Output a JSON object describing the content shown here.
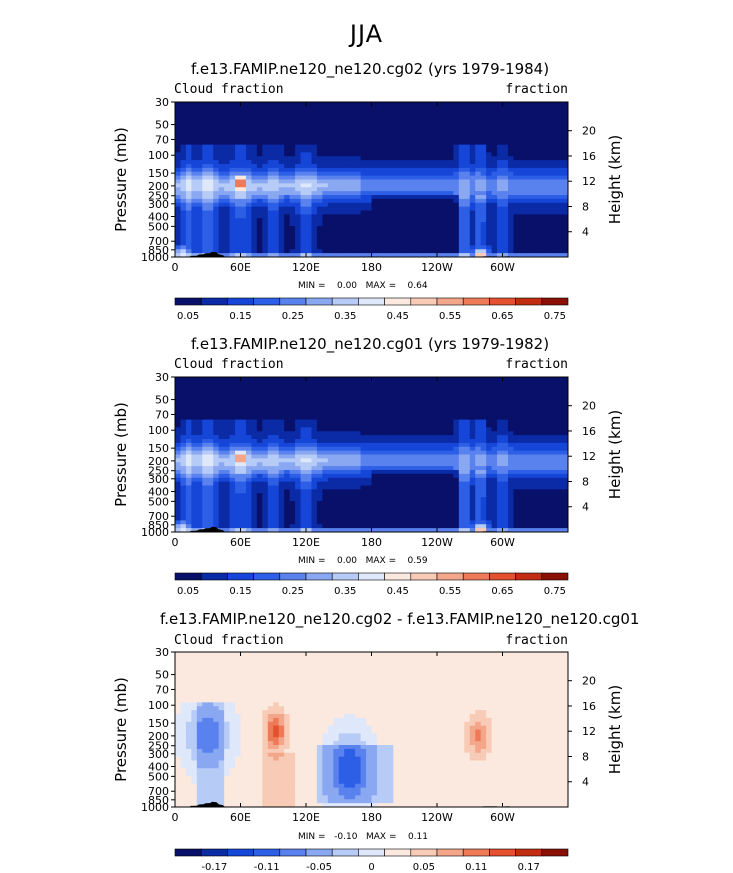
{
  "figure": {
    "title": "JJA"
  },
  "colors": {
    "abs_scale": [
      "#08106a",
      "#0a2aa6",
      "#1646d8",
      "#2c5ee6",
      "#5a82ee",
      "#8aa8f2",
      "#b6cbf6",
      "#dfe8fb",
      "#fbe8de",
      "#f8cbb6",
      "#f3a68a",
      "#ee7a58",
      "#e4512e",
      "#c22d12",
      "#8a1006"
    ],
    "diff_scale": [
      "#08106a",
      "#0a2aa6",
      "#1646d8",
      "#2c5ee6",
      "#5a82ee",
      "#8aa8f2",
      "#b6cbf6",
      "#dfe8fb",
      "#fbe8de",
      "#f8cbb6",
      "#f3a68a",
      "#ee7a58",
      "#e4512e",
      "#c22d12",
      "#8a1006"
    ],
    "topography": "#000000"
  },
  "chart_data": [
    {
      "type": "heatmap",
      "title": "f.e13.FAMIP.ne120_ne120.cg02 (yrs 1979-1984)",
      "left_label": "Cloud fraction",
      "right_label": "fraction",
      "ylabel": "Pressure (mb)",
      "ylabel_right": "Height (km)",
      "x_ticks": [
        "0",
        "60E",
        "120E",
        "180",
        "120W",
        "60W"
      ],
      "x_tick_values": [
        0,
        60,
        120,
        180,
        240,
        300
      ],
      "xlim": [
        0,
        360
      ],
      "y_ticks": [
        "30",
        "50",
        "70",
        "100",
        "150",
        "200",
        "250",
        "300",
        "400",
        "500",
        "700",
        "850",
        "1000"
      ],
      "y_tick_values": [
        30,
        50,
        70,
        100,
        150,
        200,
        250,
        300,
        400,
        500,
        700,
        850,
        1000
      ],
      "ylim": [
        30,
        1000
      ],
      "y_scale": "log",
      "right_ticks": [
        "20",
        "16",
        "12",
        "8",
        "4"
      ],
      "right_tick_values": [
        20,
        16,
        12,
        8,
        4
      ],
      "min_max_text": "MIN =    0.00   MAX =    0.64",
      "min": 0.0,
      "max": 0.64,
      "colorbar_labels": [
        "0.05",
        "0.15",
        "0.25",
        "0.35",
        "0.45",
        "0.55",
        "0.65",
        "0.75"
      ],
      "colorbar_levels": [
        0.05,
        0.1,
        0.15,
        0.2,
        0.25,
        0.3,
        0.35,
        0.4,
        0.45,
        0.5,
        0.55,
        0.6,
        0.65,
        0.7,
        0.75
      ],
      "peaks": [
        {
          "lon": 60,
          "p": 190,
          "value": 0.64
        },
        {
          "lon": 280,
          "p": 990,
          "value": 0.5
        },
        {
          "lon": 7,
          "p": 950,
          "value": 0.4
        }
      ]
    },
    {
      "type": "heatmap",
      "title": "f.e13.FAMIP.ne120_ne120.cg01 (yrs 1979-1982)",
      "left_label": "Cloud fraction",
      "right_label": "fraction",
      "ylabel": "Pressure (mb)",
      "ylabel_right": "Height (km)",
      "x_ticks": [
        "0",
        "60E",
        "120E",
        "180",
        "120W",
        "60W"
      ],
      "x_tick_values": [
        0,
        60,
        120,
        180,
        240,
        300
      ],
      "xlim": [
        0,
        360
      ],
      "y_ticks": [
        "30",
        "50",
        "70",
        "100",
        "150",
        "200",
        "250",
        "300",
        "400",
        "500",
        "700",
        "850",
        "1000"
      ],
      "y_tick_values": [
        30,
        50,
        70,
        100,
        150,
        200,
        250,
        300,
        400,
        500,
        700,
        850,
        1000
      ],
      "ylim": [
        30,
        1000
      ],
      "y_scale": "log",
      "right_ticks": [
        "20",
        "16",
        "12",
        "8",
        "4"
      ],
      "right_tick_values": [
        20,
        16,
        12,
        8,
        4
      ],
      "min_max_text": "MIN =    0.00   MAX =    0.59",
      "min": 0.0,
      "max": 0.59,
      "colorbar_labels": [
        "0.05",
        "0.15",
        "0.25",
        "0.35",
        "0.45",
        "0.55",
        "0.65",
        "0.75"
      ],
      "colorbar_levels": [
        0.05,
        0.1,
        0.15,
        0.2,
        0.25,
        0.3,
        0.35,
        0.4,
        0.45,
        0.5,
        0.55,
        0.6,
        0.65,
        0.7,
        0.75
      ],
      "peaks": [
        {
          "lon": 60,
          "p": 190,
          "value": 0.59
        },
        {
          "lon": 280,
          "p": 990,
          "value": 0.5
        },
        {
          "lon": 7,
          "p": 950,
          "value": 0.4
        }
      ]
    },
    {
      "type": "heatmap",
      "title": "f.e13.FAMIP.ne120_ne120.cg02 - f.e13.FAMIP.ne120_ne120.cg01",
      "left_label": "Cloud fraction",
      "right_label": "fraction",
      "ylabel": "Pressure (mb)",
      "ylabel_right": "Height (km)",
      "x_ticks": [
        "0",
        "60E",
        "120E",
        "180",
        "120W",
        "60W"
      ],
      "x_tick_values": [
        0,
        60,
        120,
        180,
        240,
        300
      ],
      "xlim": [
        0,
        360
      ],
      "y_ticks": [
        "30",
        "50",
        "70",
        "100",
        "150",
        "200",
        "250",
        "300",
        "400",
        "500",
        "700",
        "850",
        "1000"
      ],
      "y_tick_values": [
        30,
        50,
        70,
        100,
        150,
        200,
        250,
        300,
        400,
        500,
        700,
        850,
        1000
      ],
      "ylim": [
        30,
        1000
      ],
      "y_scale": "log",
      "right_ticks": [
        "20",
        "16",
        "12",
        "8",
        "4"
      ],
      "right_tick_values": [
        20,
        16,
        12,
        8,
        4
      ],
      "min_max_text": "MIN =   -0.10   MAX =    0.11",
      "min": -0.1,
      "max": 0.11,
      "colorbar_labels": [
        "-0.17",
        "-0.11",
        "-0.05",
        "0",
        "0.05",
        "0.11",
        "0.17"
      ],
      "colorbar_levels": [
        -0.2,
        -0.17,
        -0.14,
        -0.11,
        -0.08,
        -0.05,
        -0.02,
        0,
        0.02,
        0.05,
        0.08,
        0.11,
        0.14,
        0.17,
        0.2
      ],
      "peaks": [
        {
          "lon": 92,
          "p": 180,
          "value": 0.11
        },
        {
          "lon": 278,
          "p": 200,
          "value": 0.08
        },
        {
          "lon": 160,
          "p": 420,
          "value": -0.1
        },
        {
          "lon": 30,
          "p": 200,
          "value": -0.08
        }
      ]
    }
  ]
}
